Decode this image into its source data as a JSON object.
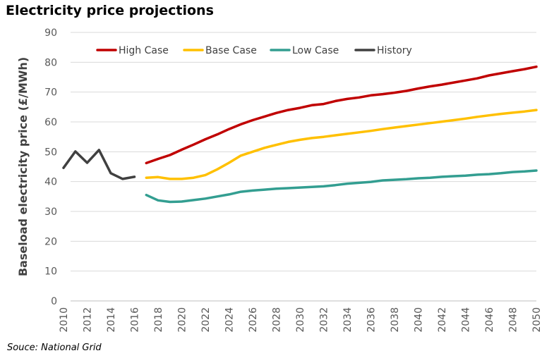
{
  "title": "Electricity price projections",
  "source": "Souce: National Grid",
  "chart_data": {
    "type": "line",
    "title": "Electricity price projections",
    "ylabel": "Baseload electricity price (£/MWh)",
    "xlabel": "",
    "ylim": [
      0,
      90
    ],
    "xlim": [
      2010,
      2050
    ],
    "y_ticks": [
      0,
      10,
      20,
      30,
      40,
      50,
      60,
      70,
      80,
      90
    ],
    "x_ticks": [
      2010,
      2012,
      2014,
      2016,
      2018,
      2020,
      2022,
      2024,
      2026,
      2028,
      2030,
      2032,
      2034,
      2036,
      2038,
      2040,
      2042,
      2044,
      2046,
      2048,
      2050
    ],
    "grid": "horizontal",
    "legend_position": "top",
    "series": [
      {
        "name": "High Case",
        "color": "#c00000",
        "x": [
          2017,
          2018,
          2019,
          2020,
          2021,
          2022,
          2023,
          2024,
          2025,
          2026,
          2027,
          2028,
          2029,
          2030,
          2031,
          2032,
          2033,
          2034,
          2035,
          2036,
          2037,
          2038,
          2039,
          2040,
          2041,
          2042,
          2043,
          2044,
          2045,
          2046,
          2047,
          2048,
          2049,
          2050
        ],
        "values": [
          46.2,
          47.6,
          48.9,
          50.7,
          52.4,
          54.2,
          55.8,
          57.6,
          59.2,
          60.6,
          61.8,
          63.0,
          64.0,
          64.7,
          65.6,
          66.0,
          67.0,
          67.7,
          68.2,
          68.9,
          69.3,
          69.8,
          70.4,
          71.2,
          71.9,
          72.5,
          73.2,
          73.9,
          74.6,
          75.6,
          76.3,
          77.0,
          77.7,
          78.5
        ]
      },
      {
        "name": "Base Case",
        "color": "#ffc000",
        "x": [
          2017,
          2018,
          2019,
          2020,
          2021,
          2022,
          2023,
          2024,
          2025,
          2026,
          2027,
          2028,
          2029,
          2030,
          2031,
          2032,
          2033,
          2034,
          2035,
          2036,
          2037,
          2038,
          2039,
          2040,
          2041,
          2042,
          2043,
          2044,
          2045,
          2046,
          2047,
          2048,
          2049,
          2050
        ],
        "values": [
          41.3,
          41.5,
          40.9,
          40.9,
          41.3,
          42.2,
          44.1,
          46.3,
          48.7,
          50.0,
          51.3,
          52.3,
          53.3,
          54.0,
          54.6,
          55.0,
          55.5,
          56.0,
          56.5,
          57.0,
          57.6,
          58.1,
          58.6,
          59.1,
          59.6,
          60.1,
          60.6,
          61.1,
          61.7,
          62.2,
          62.7,
          63.1,
          63.5,
          64.0
        ]
      },
      {
        "name": "Low Case",
        "color": "#339e91",
        "x": [
          2017,
          2018,
          2019,
          2020,
          2021,
          2022,
          2023,
          2024,
          2025,
          2026,
          2027,
          2028,
          2029,
          2030,
          2031,
          2032,
          2033,
          2034,
          2035,
          2036,
          2037,
          2038,
          2039,
          2040,
          2041,
          2042,
          2043,
          2044,
          2045,
          2046,
          2047,
          2048,
          2049,
          2050
        ],
        "values": [
          35.5,
          33.7,
          33.2,
          33.3,
          33.8,
          34.3,
          35.0,
          35.7,
          36.6,
          37.0,
          37.3,
          37.6,
          37.8,
          38.0,
          38.2,
          38.4,
          38.8,
          39.3,
          39.6,
          39.9,
          40.4,
          40.6,
          40.8,
          41.1,
          41.3,
          41.6,
          41.8,
          42.0,
          42.3,
          42.5,
          42.8,
          43.2,
          43.4,
          43.7
        ]
      },
      {
        "name": "History",
        "color": "#404040",
        "x": [
          2010,
          2011,
          2012,
          2013,
          2014,
          2015,
          2016
        ],
        "values": [
          44.6,
          50.1,
          46.3,
          50.6,
          42.8,
          40.9,
          41.6
        ]
      }
    ]
  }
}
